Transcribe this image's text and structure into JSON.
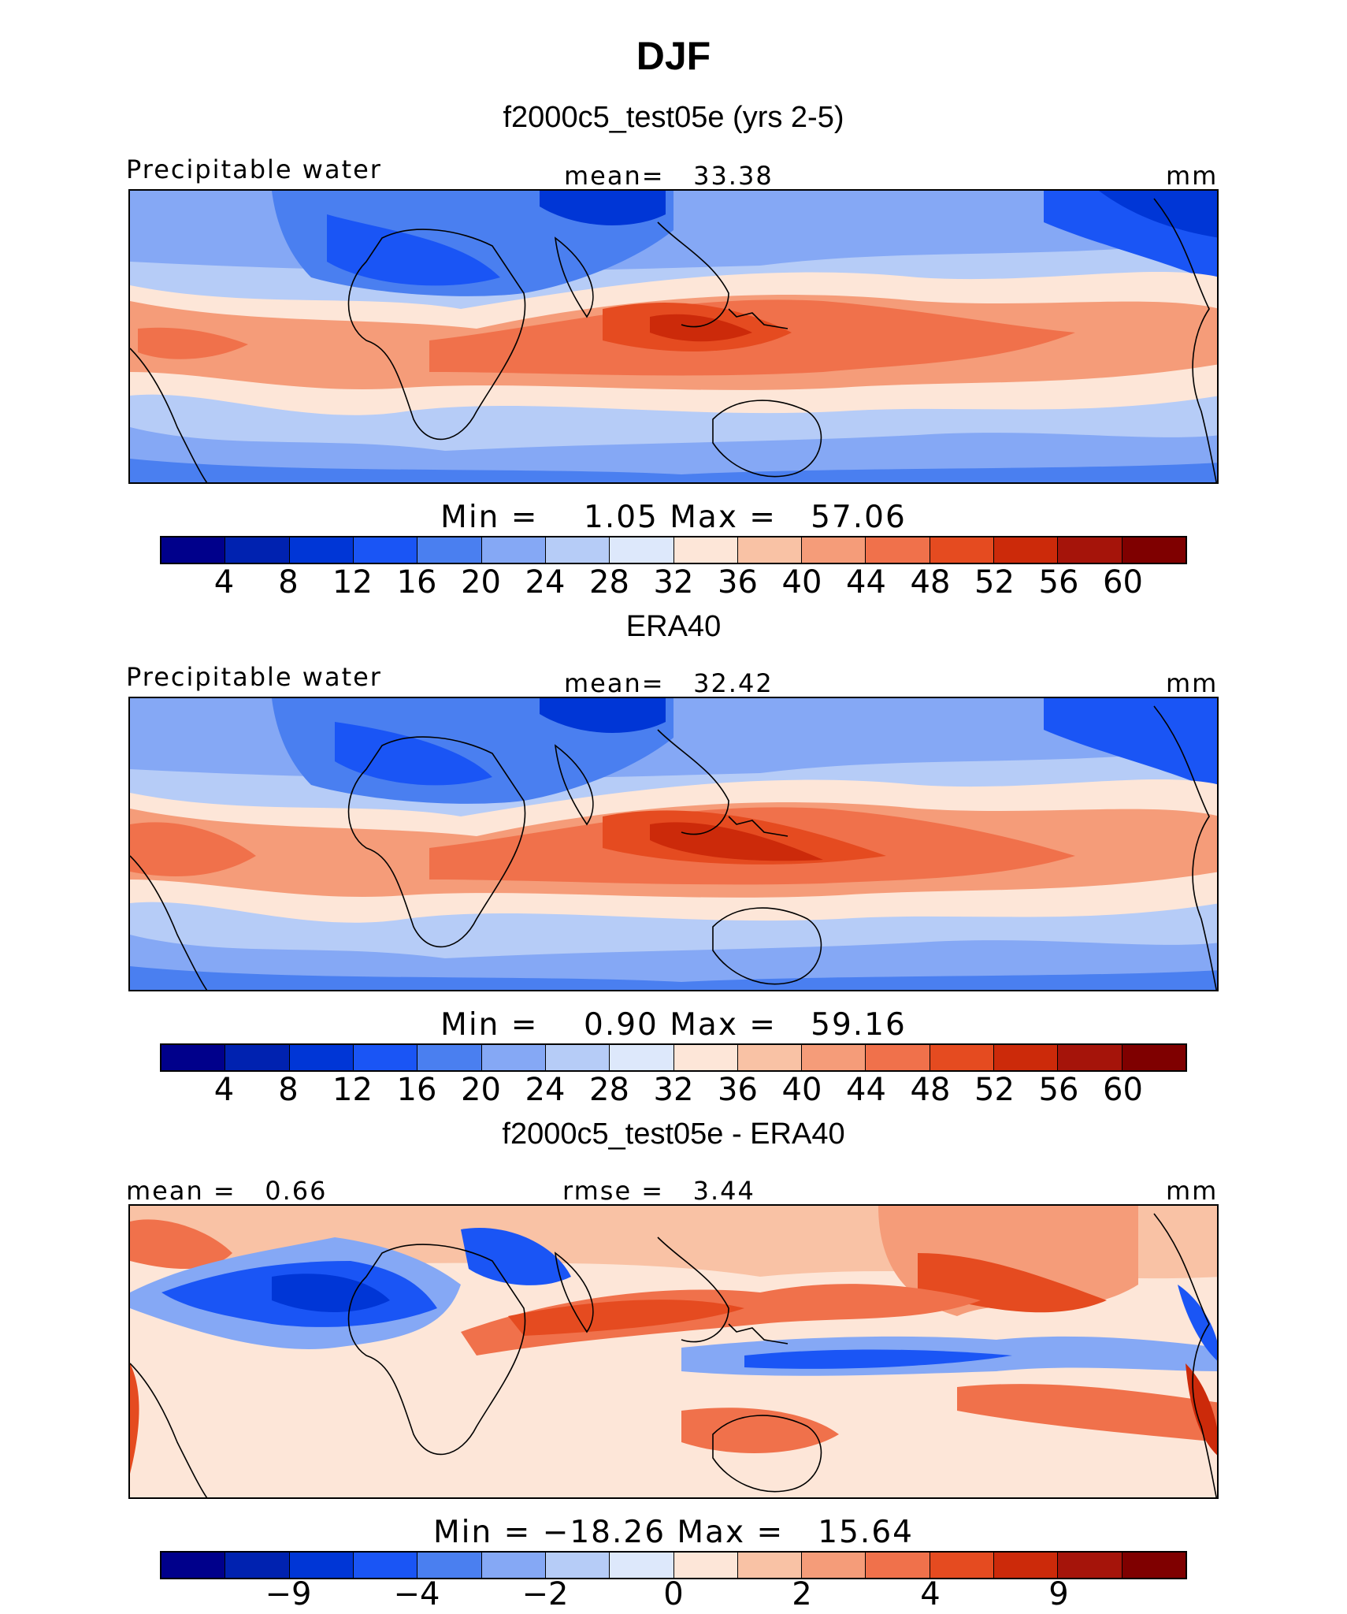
{
  "title": "DJF",
  "panels": [
    {
      "subtitle": "f2000c5_test05e (yrs 2-5)",
      "left_label": "Precipitable water",
      "center_label": "mean=   33.38",
      "right_label": "mm",
      "minmax": "Min =    1.05 Max =   57.06",
      "kind": "model"
    },
    {
      "subtitle": "ERA40",
      "left_label": "Precipitable water",
      "center_label": "mean=   32.42",
      "right_label": "mm",
      "minmax": "Min =    0.90 Max =   59.16",
      "kind": "obs"
    },
    {
      "subtitle": "f2000c5_test05e - ERA40",
      "left_label": "mean =   0.66",
      "center_label": "rmse =   3.44",
      "right_label": "mm",
      "minmax": "Min = −18.26 Max =   15.64",
      "kind": "diff"
    }
  ],
  "colorbar_colors": [
    "#00008b",
    "#0022b0",
    "#0036d6",
    "#1a55f5",
    "#4a7ff0",
    "#85a8f5",
    "#b6ccf7",
    "#dde8fb",
    "#fde6d8",
    "#f9c2a5",
    "#f59c79",
    "#f0714b",
    "#e54b20",
    "#cc2a0a",
    "#a5140a",
    "#7f0000"
  ],
  "colorbar_ticks_abs": [
    "4",
    "8",
    "12",
    "16",
    "20",
    "24",
    "28",
    "32",
    "36",
    "40",
    "44",
    "48",
    "52",
    "56",
    "60"
  ],
  "colorbar_ticks_diff": [
    "−9",
    "−4",
    "−2",
    "0",
    "2",
    "4",
    "9"
  ]
}
